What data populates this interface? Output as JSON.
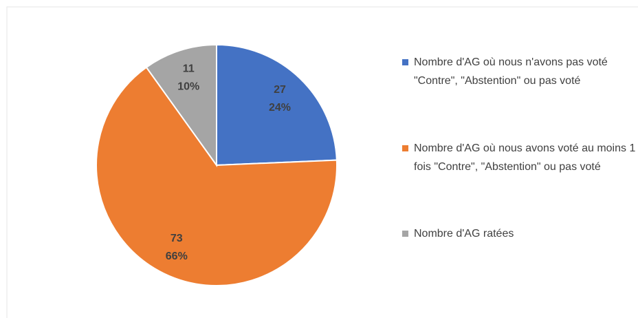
{
  "chart_data": {
    "type": "pie",
    "categories": [
      "Nombre d'AG où nous n'avons pas voté \"Contre\", \"Abstention\" ou pas voté",
      "Nombre d'AG où nous avons voté au moins 1 fois  \"Contre\", \"Abstention\" ou pas voté",
      "Nombre d'AG ratées"
    ],
    "values": [
      27,
      73,
      11
    ],
    "value_labels": [
      "24%",
      "66%",
      "10%"
    ],
    "colors": [
      "#4472c4",
      "#ed7d31",
      "#a5a5a5"
    ],
    "legend": "right"
  }
}
